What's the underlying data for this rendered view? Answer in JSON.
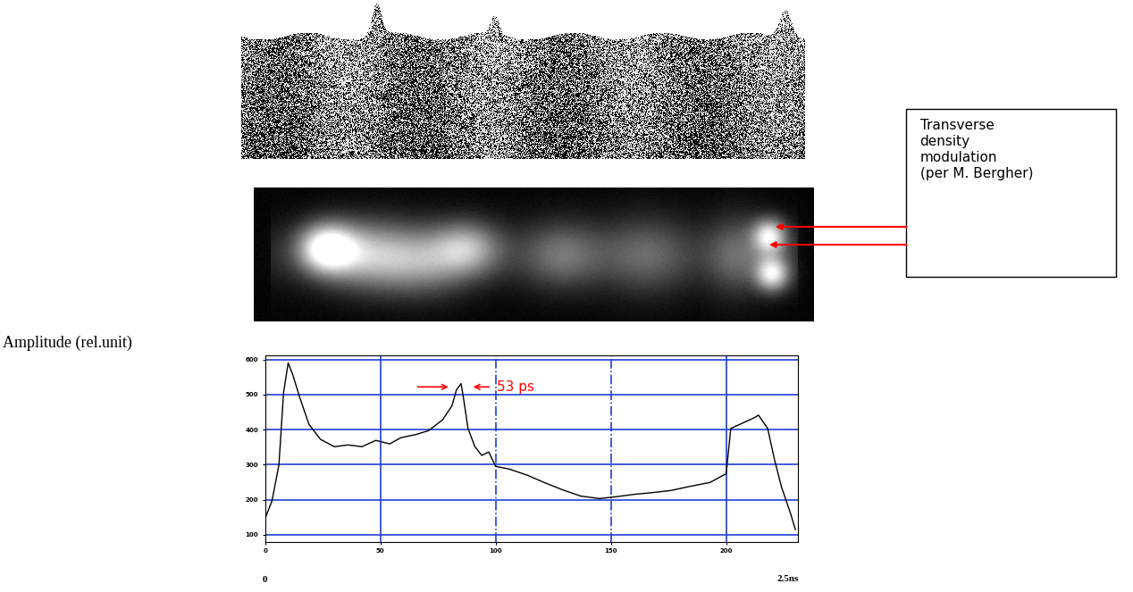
{
  "chart_data": {
    "type": "line",
    "y_label": "Amplitude (rel.unit)",
    "x_range_labels": [
      "0",
      "2.5ns"
    ],
    "x": [
      0,
      3,
      6,
      8,
      10,
      12,
      15,
      19,
      24,
      30,
      36,
      42,
      48,
      54,
      59,
      65,
      71,
      77,
      81,
      83,
      85,
      86,
      88,
      91,
      94,
      97,
      100,
      106,
      114,
      121,
      129,
      137,
      145,
      152,
      160,
      168,
      176,
      183,
      193,
      200,
      202,
      207,
      212,
      214,
      218,
      221,
      224,
      228,
      230
    ],
    "values": [
      146,
      197,
      300,
      505,
      590,
      556,
      492,
      415,
      372,
      351,
      356,
      351,
      369,
      359,
      377,
      385,
      397,
      428,
      467,
      513,
      531,
      492,
      403,
      351,
      326,
      336,
      295,
      287,
      269,
      249,
      228,
      210,
      203,
      208,
      215,
      220,
      226,
      236,
      249,
      274,
      403,
      418,
      433,
      441,
      403,
      313,
      236,
      159,
      115
    ],
    "color": "#000000",
    "xlim": [
      0,
      231
    ],
    "xticks": [
      0,
      50,
      100,
      150,
      200
    ],
    "ylim": [
      80,
      612
    ],
    "yticks": [
      100,
      200,
      300,
      400,
      500,
      600
    ],
    "grid": true,
    "annotations": [
      {
        "text": "53 ps",
        "color": "#ff0000"
      },
      {
        "text_lines": [
          "Transverse",
          "density",
          "modulation",
          "(per M. Bergher)"
        ],
        "color": "#ff0000"
      }
    ]
  }
}
